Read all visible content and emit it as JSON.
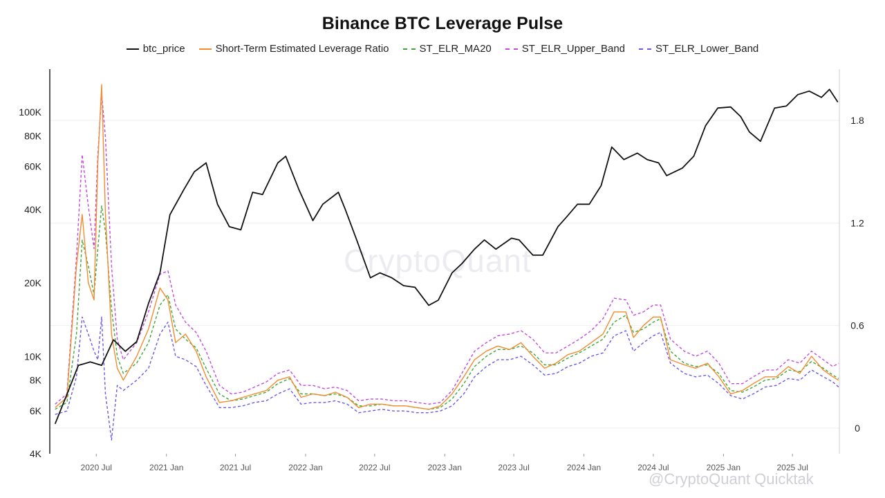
{
  "chart_data": {
    "type": "line",
    "title": "Binance BTC Leverage Pulse",
    "legend_placement": "top-center",
    "grid": "horizontal",
    "x_ticks": [
      "2020 Jul",
      "2021 Jan",
      "2021 Jul",
      "2022 Jan",
      "2022 Jul",
      "2023 Jan",
      "2023 Jul",
      "2024 Jan",
      "2024 Jul",
      "2025 Jan",
      "2025 Jul"
    ],
    "x_range": [
      "2020-03-01",
      "2025-11-01"
    ],
    "y_left": {
      "scale": "log",
      "range": [
        4000,
        150000
      ],
      "ticks": [
        4000,
        6000,
        8000,
        10000,
        20000,
        40000,
        60000,
        80000,
        100000
      ],
      "tick_labels": [
        "4K",
        "6K",
        "8K",
        "10K",
        "20K",
        "40K",
        "60K",
        "80K",
        "100K"
      ]
    },
    "y_right": {
      "scale": "linear",
      "range": [
        -0.15,
        2.1
      ],
      "ticks": [
        0,
        0.6,
        1.2,
        1.8
      ],
      "tick_labels": [
        "0",
        "0.6",
        "1.2",
        "1.8"
      ]
    },
    "series": [
      {
        "name": "btc_price",
        "color": "#111111",
        "dash": "solid",
        "axis": "left",
        "x": [
          "2020-03-15",
          "2020-04-15",
          "2020-05-15",
          "2020-06-15",
          "2020-07-15",
          "2020-08-15",
          "2020-09-15",
          "2020-10-15",
          "2020-11-15",
          "2020-12-15",
          "2021-01-10",
          "2021-02-15",
          "2021-03-15",
          "2021-04-15",
          "2021-05-15",
          "2021-06-15",
          "2021-07-15",
          "2021-08-15",
          "2021-09-10",
          "2021-10-20",
          "2021-11-10",
          "2021-12-15",
          "2022-01-20",
          "2022-02-15",
          "2022-03-28",
          "2022-04-15",
          "2022-05-15",
          "2022-06-20",
          "2022-07-15",
          "2022-08-15",
          "2022-09-15",
          "2022-10-15",
          "2022-11-20",
          "2022-12-15",
          "2023-01-20",
          "2023-02-15",
          "2023-03-20",
          "2023-04-15",
          "2023-05-15",
          "2023-06-25",
          "2023-07-15",
          "2023-08-20",
          "2023-09-15",
          "2023-10-25",
          "2023-11-15",
          "2023-12-15",
          "2024-01-15",
          "2024-02-15",
          "2024-03-14",
          "2024-04-15",
          "2024-05-20",
          "2024-06-15",
          "2024-07-15",
          "2024-08-05",
          "2024-09-15",
          "2024-10-15",
          "2024-11-15",
          "2024-12-17",
          "2025-01-20",
          "2025-02-15",
          "2025-03-10",
          "2025-04-08",
          "2025-05-15",
          "2025-06-15",
          "2025-07-15",
          "2025-08-14",
          "2025-09-15",
          "2025-10-06",
          "2025-10-28"
        ],
        "y": [
          5300,
          7000,
          9200,
          9500,
          9200,
          11700,
          10500,
          11500,
          16500,
          22000,
          38000,
          48000,
          57000,
          62000,
          42000,
          34000,
          33000,
          47000,
          46000,
          62000,
          66000,
          48000,
          36000,
          42000,
          47000,
          40000,
          30000,
          21000,
          22000,
          21000,
          19500,
          19200,
          16200,
          17000,
          22000,
          24000,
          27500,
          30000,
          27500,
          30500,
          30000,
          26000,
          26000,
          34000,
          37000,
          42000,
          42000,
          50000,
          72000,
          64000,
          68000,
          64000,
          62000,
          55000,
          59000,
          66000,
          88000,
          104000,
          105000,
          96000,
          83000,
          76000,
          104000,
          106000,
          118000,
          122000,
          115000,
          124000,
          110000
        ]
      },
      {
        "name": "Short-Term Estimated Leverage Ratio",
        "color": "#f28b30",
        "dash": "solid",
        "axis": "right",
        "x": [
          "2020-03-15",
          "2020-04-15",
          "2020-05-10",
          "2020-05-25",
          "2020-06-10",
          "2020-06-25",
          "2020-07-05",
          "2020-07-15",
          "2020-07-25",
          "2020-08-10",
          "2020-08-25",
          "2020-09-10",
          "2020-10-15",
          "2020-11-15",
          "2020-12-15",
          "2021-01-05",
          "2021-01-25",
          "2021-02-20",
          "2021-03-20",
          "2021-04-15",
          "2021-05-20",
          "2021-06-20",
          "2021-07-20",
          "2021-08-20",
          "2021-09-20",
          "2021-10-20",
          "2021-11-20",
          "2021-12-20",
          "2022-01-20",
          "2022-02-20",
          "2022-03-20",
          "2022-04-20",
          "2022-05-20",
          "2022-06-20",
          "2022-07-20",
          "2022-08-20",
          "2022-09-20",
          "2022-10-20",
          "2022-11-20",
          "2022-12-20",
          "2023-01-20",
          "2023-02-20",
          "2023-03-20",
          "2023-04-20",
          "2023-05-20",
          "2023-06-20",
          "2023-07-20",
          "2023-08-20",
          "2023-09-20",
          "2023-10-20",
          "2023-11-20",
          "2023-12-20",
          "2024-01-20",
          "2024-02-20",
          "2024-03-20",
          "2024-04-20",
          "2024-05-10",
          "2024-06-05",
          "2024-07-01",
          "2024-07-20",
          "2024-08-15",
          "2024-09-20",
          "2024-10-20",
          "2024-11-20",
          "2024-12-20",
          "2025-01-20",
          "2025-02-20",
          "2025-03-20",
          "2025-04-20",
          "2025-05-20",
          "2025-06-20",
          "2025-07-20",
          "2025-08-20",
          "2025-09-20",
          "2025-10-15",
          "2025-10-30"
        ],
        "y": [
          0.12,
          0.18,
          0.95,
          1.25,
          0.85,
          0.75,
          1.55,
          2.01,
          1.25,
          0.55,
          0.35,
          0.28,
          0.42,
          0.58,
          0.82,
          0.75,
          0.5,
          0.55,
          0.45,
          0.3,
          0.15,
          0.16,
          0.18,
          0.2,
          0.22,
          0.28,
          0.3,
          0.18,
          0.2,
          0.19,
          0.21,
          0.18,
          0.12,
          0.14,
          0.14,
          0.13,
          0.13,
          0.12,
          0.11,
          0.13,
          0.2,
          0.3,
          0.4,
          0.45,
          0.48,
          0.46,
          0.5,
          0.42,
          0.35,
          0.38,
          0.43,
          0.45,
          0.5,
          0.55,
          0.68,
          0.68,
          0.53,
          0.6,
          0.65,
          0.65,
          0.4,
          0.37,
          0.35,
          0.38,
          0.3,
          0.2,
          0.22,
          0.26,
          0.3,
          0.3,
          0.36,
          0.32,
          0.42,
          0.34,
          0.3,
          0.28
        ]
      },
      {
        "name": "ST_ELR_MA20",
        "color": "#3aa832",
        "dash": "dashed",
        "axis": "right",
        "x": [
          "2020-03-15",
          "2020-04-15",
          "2020-05-10",
          "2020-05-25",
          "2020-06-10",
          "2020-06-25",
          "2020-07-05",
          "2020-07-15",
          "2020-07-25",
          "2020-08-10",
          "2020-08-25",
          "2020-09-10",
          "2020-10-15",
          "2020-11-15",
          "2020-12-15",
          "2021-01-05",
          "2021-01-25",
          "2021-02-20",
          "2021-03-20",
          "2021-04-15",
          "2021-05-20",
          "2021-06-20",
          "2021-07-20",
          "2021-08-20",
          "2021-09-20",
          "2021-10-20",
          "2021-11-20",
          "2021-12-20",
          "2022-01-20",
          "2022-02-20",
          "2022-03-20",
          "2022-04-20",
          "2022-05-20",
          "2022-06-20",
          "2022-07-20",
          "2022-08-20",
          "2022-09-20",
          "2022-10-20",
          "2022-11-20",
          "2022-12-20",
          "2023-01-20",
          "2023-02-20",
          "2023-03-20",
          "2023-04-20",
          "2023-05-20",
          "2023-06-20",
          "2023-07-20",
          "2023-08-20",
          "2023-09-20",
          "2023-10-20",
          "2023-11-20",
          "2023-12-20",
          "2024-01-20",
          "2024-02-20",
          "2024-03-20",
          "2024-04-20",
          "2024-05-10",
          "2024-06-05",
          "2024-07-01",
          "2024-07-20",
          "2024-08-15",
          "2024-09-20",
          "2024-10-20",
          "2024-11-20",
          "2024-12-20",
          "2025-01-20",
          "2025-02-20",
          "2025-03-20",
          "2025-04-20",
          "2025-05-20",
          "2025-06-20",
          "2025-07-20",
          "2025-08-20",
          "2025-09-20",
          "2025-10-15",
          "2025-10-30"
        ],
        "y": [
          0.11,
          0.15,
          0.55,
          1.1,
          0.95,
          0.78,
          1.05,
          1.3,
          1.15,
          0.7,
          0.42,
          0.32,
          0.38,
          0.5,
          0.72,
          0.78,
          0.58,
          0.52,
          0.47,
          0.35,
          0.2,
          0.16,
          0.17,
          0.19,
          0.21,
          0.26,
          0.29,
          0.2,
          0.2,
          0.19,
          0.2,
          0.18,
          0.13,
          0.13,
          0.14,
          0.13,
          0.13,
          0.12,
          0.11,
          0.12,
          0.17,
          0.26,
          0.36,
          0.42,
          0.46,
          0.46,
          0.48,
          0.44,
          0.37,
          0.37,
          0.41,
          0.44,
          0.48,
          0.52,
          0.62,
          0.66,
          0.56,
          0.58,
          0.62,
          0.64,
          0.45,
          0.38,
          0.36,
          0.37,
          0.32,
          0.22,
          0.21,
          0.24,
          0.28,
          0.29,
          0.34,
          0.33,
          0.39,
          0.35,
          0.31,
          0.29
        ]
      },
      {
        "name": "ST_ELR_Upper_Band",
        "color": "#c448e0",
        "dash": "dashed",
        "axis": "right",
        "x": [
          "2020-03-15",
          "2020-04-15",
          "2020-05-10",
          "2020-05-25",
          "2020-06-10",
          "2020-06-25",
          "2020-07-05",
          "2020-07-15",
          "2020-07-25",
          "2020-08-10",
          "2020-08-25",
          "2020-09-10",
          "2020-10-15",
          "2020-11-15",
          "2020-12-15",
          "2021-01-05",
          "2021-01-25",
          "2021-02-20",
          "2021-03-20",
          "2021-04-15",
          "2021-05-20",
          "2021-06-20",
          "2021-07-20",
          "2021-08-20",
          "2021-09-20",
          "2021-10-20",
          "2021-11-20",
          "2021-12-20",
          "2022-01-20",
          "2022-02-20",
          "2022-03-20",
          "2022-04-20",
          "2022-05-20",
          "2022-06-20",
          "2022-07-20",
          "2022-08-20",
          "2022-09-20",
          "2022-10-20",
          "2022-11-20",
          "2022-12-20",
          "2023-01-20",
          "2023-02-20",
          "2023-03-20",
          "2023-04-20",
          "2023-05-20",
          "2023-06-20",
          "2023-07-20",
          "2023-08-20",
          "2023-09-20",
          "2023-10-20",
          "2023-11-20",
          "2023-12-20",
          "2024-01-20",
          "2024-02-20",
          "2024-03-20",
          "2024-04-20",
          "2024-05-10",
          "2024-06-05",
          "2024-07-01",
          "2024-07-20",
          "2024-08-15",
          "2024-09-20",
          "2024-10-20",
          "2024-11-20",
          "2024-12-20",
          "2025-01-20",
          "2025-02-20",
          "2025-03-20",
          "2025-04-20",
          "2025-05-20",
          "2025-06-20",
          "2025-07-20",
          "2025-08-20",
          "2025-09-20",
          "2025-10-15",
          "2025-10-30"
        ],
        "y": [
          0.14,
          0.2,
          1.0,
          1.6,
          1.3,
          1.05,
          1.6,
          1.96,
          1.7,
          0.95,
          0.52,
          0.4,
          0.5,
          0.68,
          0.9,
          0.92,
          0.72,
          0.62,
          0.56,
          0.45,
          0.25,
          0.2,
          0.21,
          0.24,
          0.27,
          0.32,
          0.34,
          0.25,
          0.25,
          0.23,
          0.24,
          0.22,
          0.16,
          0.17,
          0.17,
          0.16,
          0.16,
          0.15,
          0.14,
          0.15,
          0.22,
          0.34,
          0.45,
          0.5,
          0.54,
          0.55,
          0.57,
          0.52,
          0.44,
          0.44,
          0.48,
          0.52,
          0.57,
          0.64,
          0.76,
          0.75,
          0.66,
          0.68,
          0.72,
          0.72,
          0.52,
          0.45,
          0.42,
          0.45,
          0.38,
          0.26,
          0.26,
          0.3,
          0.34,
          0.34,
          0.4,
          0.38,
          0.45,
          0.4,
          0.36,
          0.38
        ]
      },
      {
        "name": "ST_ELR_Lower_Band",
        "color": "#6a5ae8",
        "dash": "dashed",
        "axis": "right",
        "x": [
          "2020-03-15",
          "2020-04-15",
          "2020-05-10",
          "2020-05-25",
          "2020-06-10",
          "2020-06-25",
          "2020-07-05",
          "2020-07-15",
          "2020-07-25",
          "2020-08-10",
          "2020-08-25",
          "2020-09-10",
          "2020-10-15",
          "2020-11-15",
          "2020-12-15",
          "2021-01-05",
          "2021-01-25",
          "2021-02-20",
          "2021-03-20",
          "2021-04-15",
          "2021-05-20",
          "2021-06-20",
          "2021-07-20",
          "2021-08-20",
          "2021-09-20",
          "2021-10-20",
          "2021-11-20",
          "2021-12-20",
          "2022-01-20",
          "2022-02-20",
          "2022-03-20",
          "2022-04-20",
          "2022-05-20",
          "2022-06-20",
          "2022-07-20",
          "2022-08-20",
          "2022-09-20",
          "2022-10-20",
          "2022-11-20",
          "2022-12-20",
          "2023-01-20",
          "2023-02-20",
          "2023-03-20",
          "2023-04-20",
          "2023-05-20",
          "2023-06-20",
          "2023-07-20",
          "2023-08-20",
          "2023-09-20",
          "2023-10-20",
          "2023-11-20",
          "2023-12-20",
          "2024-01-20",
          "2024-02-20",
          "2024-03-20",
          "2024-04-20",
          "2024-05-10",
          "2024-06-05",
          "2024-07-01",
          "2024-07-20",
          "2024-08-15",
          "2024-09-20",
          "2024-10-20",
          "2024-11-20",
          "2024-12-20",
          "2025-01-20",
          "2025-02-20",
          "2025-03-20",
          "2025-04-20",
          "2025-05-20",
          "2025-06-20",
          "2025-07-20",
          "2025-08-20",
          "2025-09-20",
          "2025-10-15",
          "2025-10-30"
        ],
        "y": [
          0.08,
          0.1,
          0.3,
          0.65,
          0.55,
          0.45,
          0.4,
          0.65,
          0.2,
          -0.07,
          0.25,
          0.22,
          0.28,
          0.35,
          0.55,
          0.62,
          0.42,
          0.4,
          0.36,
          0.25,
          0.12,
          0.12,
          0.13,
          0.15,
          0.16,
          0.2,
          0.23,
          0.14,
          0.15,
          0.15,
          0.16,
          0.14,
          0.09,
          0.1,
          0.11,
          0.1,
          0.1,
          0.09,
          0.09,
          0.1,
          0.13,
          0.2,
          0.3,
          0.36,
          0.4,
          0.4,
          0.42,
          0.37,
          0.31,
          0.32,
          0.36,
          0.38,
          0.42,
          0.44,
          0.54,
          0.57,
          0.45,
          0.5,
          0.54,
          0.56,
          0.38,
          0.32,
          0.3,
          0.31,
          0.26,
          0.19,
          0.17,
          0.2,
          0.24,
          0.25,
          0.29,
          0.28,
          0.34,
          0.3,
          0.27,
          0.24
        ]
      }
    ]
  },
  "watermarks": {
    "center": "CryptoQuant",
    "corner": "@CryptoQuant Quicktak"
  }
}
